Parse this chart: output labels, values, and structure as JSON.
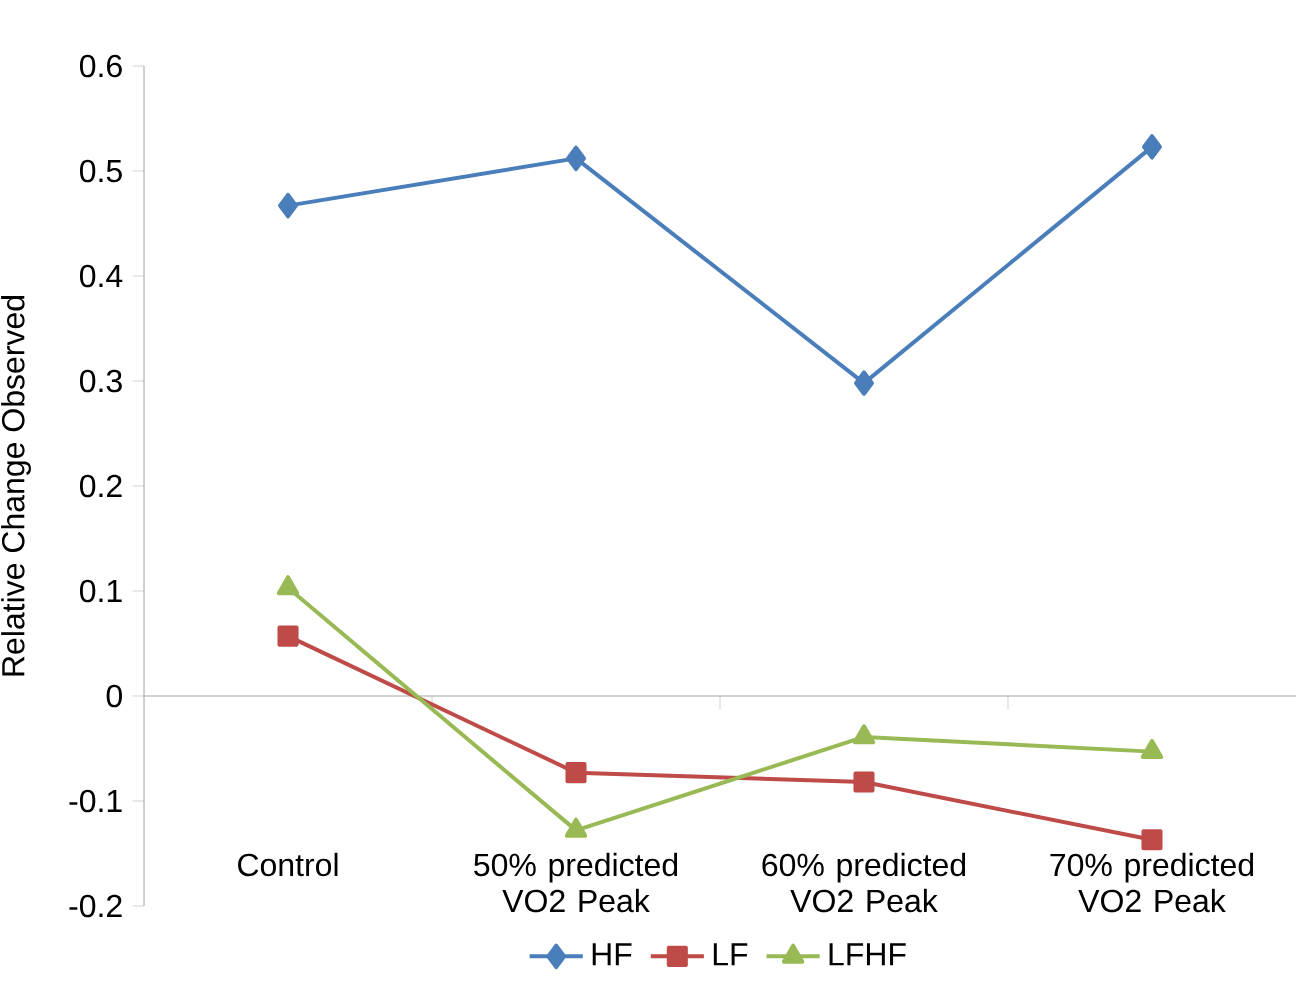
{
  "chart_data": {
    "type": "line",
    "ylabel": "Relative Change Observed",
    "categories": [
      "Control",
      "50% predicted VO2 Peak",
      "60% predicted VO2 Peak",
      "70% predicted VO2 Peak"
    ],
    "series": [
      {
        "name": "HF",
        "color": "#4a7ebb",
        "marker": "diamond",
        "values": [
          0.467,
          0.512,
          0.298,
          0.523
        ]
      },
      {
        "name": "LF",
        "color": "#be4b48",
        "marker": "square",
        "values": [
          0.057,
          -0.073,
          -0.082,
          -0.137
        ]
      },
      {
        "name": "LFHF",
        "color": "#98b954",
        "marker": "triangle",
        "values": [
          0.103,
          -0.128,
          -0.039,
          -0.053
        ]
      }
    ],
    "ylim": [
      -0.2,
      0.6
    ],
    "yticks": [
      -0.2,
      -0.1,
      0,
      0.1,
      0.2,
      0.3,
      0.4,
      0.5,
      0.6
    ],
    "legend": "bottom",
    "line_style": "solid"
  }
}
